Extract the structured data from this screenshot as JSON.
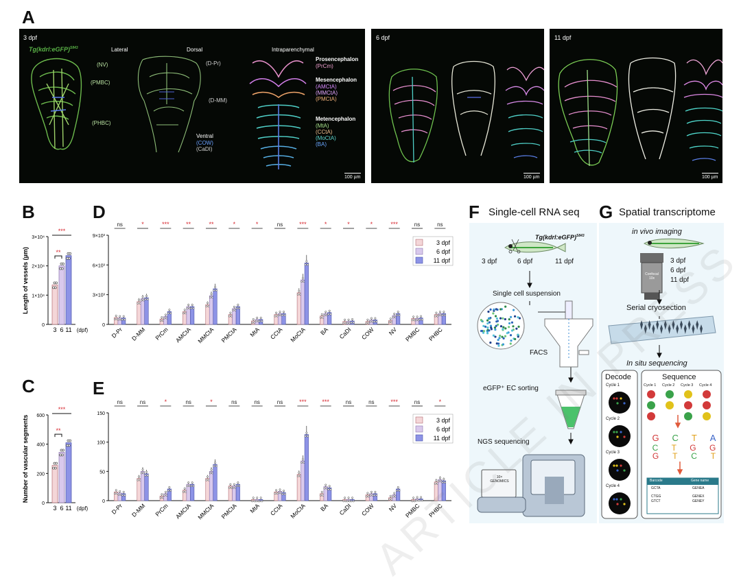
{
  "panels": {
    "A": "A",
    "B": "B",
    "C": "C",
    "D": "D",
    "E": "E",
    "F": "F",
    "G": "G"
  },
  "panelA": {
    "img1": {
      "stage": "3 dpf",
      "transgene": "Tg(kdrl:eGFP)",
      "transgene_sup": "S843",
      "views": [
        "Lateral",
        "Dorsal",
        "Intraparenchymal"
      ],
      "left_labels": [
        "(NV)",
        "(PMBC)",
        "(PHBC)"
      ],
      "dorsal_labels": [
        "(D-Pr)",
        "(D-MM)"
      ],
      "ventral_title": "Ventral",
      "ventral_items": [
        "(COW)",
        "(CaDI)"
      ],
      "groups": [
        {
          "name": "Prosencephalon",
          "items": [
            "(PrCm)"
          ]
        },
        {
          "name": "Mesencephalon",
          "items": [
            "(AMCtA)",
            "(MMCtA)",
            "(PMCtA)"
          ]
        },
        {
          "name": "Metencephalon",
          "items": [
            "(MtA)",
            "(CCtA)",
            "(MoCtA)",
            "(BA)"
          ]
        }
      ],
      "scalebar": "100 µm"
    },
    "img2": {
      "stage": "6 dpf",
      "scalebar": "100 µm"
    },
    "img3": {
      "stage": "11 dpf",
      "scalebar": "100 µm"
    }
  },
  "colors": {
    "d3": "#f4d6d8",
    "d6": "#d9c9ec",
    "d11": "#8d93e6",
    "sig": "#d6262e",
    "ns": "#222222"
  },
  "chart_data": [
    {
      "type": "bar",
      "panel": "B",
      "ylabel": "Length of vessels (µm)",
      "xlabel": "(dpf)",
      "categories": [
        "3",
        "6",
        "11"
      ],
      "values": [
        13500,
        20000,
        23500
      ],
      "ylim": [
        0,
        30000
      ],
      "yticks": [
        "0",
        "1×10⁴",
        "2×10⁴",
        "3×10⁴"
      ],
      "significance": [
        {
          "pair": [
            "3",
            "11"
          ],
          "label": "***"
        },
        {
          "pair": [
            "3",
            "6"
          ],
          "label": "**"
        }
      ]
    },
    {
      "type": "bar",
      "panel": "C",
      "ylabel": "Number of vascular segments",
      "xlabel": "(dpf)",
      "categories": [
        "3",
        "6",
        "11"
      ],
      "values": [
        255,
        345,
        410
      ],
      "ylim": [
        0,
        600
      ],
      "yticks": [
        "0",
        "200",
        "400",
        "600"
      ],
      "significance": [
        {
          "pair": [
            "3",
            "11"
          ],
          "label": "***"
        },
        {
          "pair": [
            "3",
            "6"
          ],
          "label": "**"
        }
      ]
    },
    {
      "type": "bar",
      "panel": "D",
      "categories": [
        "D-Pr",
        "D-MM",
        "PrCm",
        "AMCtA",
        "MMCtA",
        "PMCtA",
        "MtA",
        "CCtA",
        "MoCtA",
        "BA",
        "CaDI",
        "COW",
        "NV",
        "PMBC",
        "PHBC"
      ],
      "series": [
        {
          "name": "3 dpf",
          "values": [
            700,
            2300,
            550,
            1300,
            2000,
            1000,
            350,
            1000,
            3200,
            850,
            300,
            300,
            400,
            600,
            1000
          ]
        },
        {
          "name": "6 dpf",
          "values": [
            650,
            2600,
            800,
            1800,
            2900,
            1600,
            500,
            1100,
            4500,
            1100,
            300,
            450,
            900,
            600,
            1100
          ]
        },
        {
          "name": "11 dpf",
          "values": [
            650,
            2700,
            1300,
            1800,
            3600,
            1800,
            500,
            1100,
            6200,
            1200,
            350,
            450,
            1100,
            650,
            1100
          ]
        }
      ],
      "ylim": [
        0,
        9000
      ],
      "yticks": [
        "0",
        "3×10³",
        "6×10³",
        "9×10³"
      ],
      "top_significance": [
        "ns",
        "*",
        "***",
        "**",
        "**",
        "*",
        "*",
        "ns",
        "***",
        "*",
        "*",
        "*",
        "***",
        "ns",
        "ns"
      ],
      "legend": [
        "3 dpf",
        "6 dpf",
        "11 dpf"
      ]
    },
    {
      "type": "bar",
      "panel": "E",
      "categories": [
        "D-Pr",
        "D-MM",
        "PrCm",
        "AMCtA",
        "MMCtA",
        "PMCtA",
        "MtA",
        "CCtA",
        "MoCtA",
        "BA",
        "CaDI",
        "COW",
        "NV",
        "PMBC",
        "PHBC"
      ],
      "series": [
        {
          "name": "3 dpf",
          "values": [
            15,
            38,
            8,
            18,
            38,
            25,
            2,
            15,
            45,
            12,
            2,
            10,
            5,
            2,
            32
          ]
        },
        {
          "name": "6 dpf",
          "values": [
            13,
            50,
            12,
            28,
            50,
            25,
            2,
            16,
            68,
            24,
            2,
            12,
            10,
            3,
            36
          ]
        },
        {
          "name": "11 dpf",
          "values": [
            12,
            46,
            20,
            28,
            62,
            28,
            2,
            14,
            113,
            22,
            2,
            12,
            20,
            3,
            34
          ]
        }
      ],
      "ylim": [
        0,
        150
      ],
      "yticks": [
        "0",
        "50",
        "100",
        "150"
      ],
      "top_significance": [
        "ns",
        "ns",
        "*",
        "ns",
        "*",
        "ns",
        "ns",
        "ns",
        "***",
        "***",
        "ns",
        "ns",
        "***",
        "ns",
        "*"
      ],
      "legend": [
        "3 dpf",
        "6 dpf",
        "11 dpf"
      ]
    }
  ],
  "panelF": {
    "title": "Single-cell RNA seq",
    "transgene": "Tg(kdrl:eGFP)",
    "transgene_sup": "S843",
    "stages": [
      "3 dpf",
      "6 dpf",
      "11 dpf"
    ],
    "step1": "Single cell suspension",
    "facs": "FACS",
    "step2": "eGFP⁺ EC sorting",
    "step3": "NGS sequencing",
    "device": "10×\nGENOMICS"
  },
  "panelG": {
    "title": "Spatial transcriptome",
    "step1": "in vivo imaging",
    "objective": "Confocal\n10x",
    "stages": [
      "3 dpf",
      "6 dpf",
      "11 dpf"
    ],
    "step2": "Serial cryosection",
    "step3": "In situ sequencing",
    "decode": "Decode",
    "sequence": "Sequence",
    "cycles": [
      "Cycle 1",
      "Cycle 2",
      "Cycle 3",
      "Cycle 4"
    ],
    "bases_row1": [
      "G",
      "C",
      "T",
      "A"
    ],
    "bases_row2": [
      "C",
      "T",
      "G",
      "G"
    ],
    "bases_row3": [
      "G",
      "T",
      "C",
      "T"
    ],
    "table_headers": [
      "Barcode",
      "Gene name"
    ],
    "table_rows": [
      [
        "GCTA",
        "GENEA"
      ],
      [
        "CTGG",
        "GENEX"
      ],
      [
        "GTCT",
        "GENEY"
      ]
    ]
  },
  "watermark": "ARTICLE IN PRESS"
}
